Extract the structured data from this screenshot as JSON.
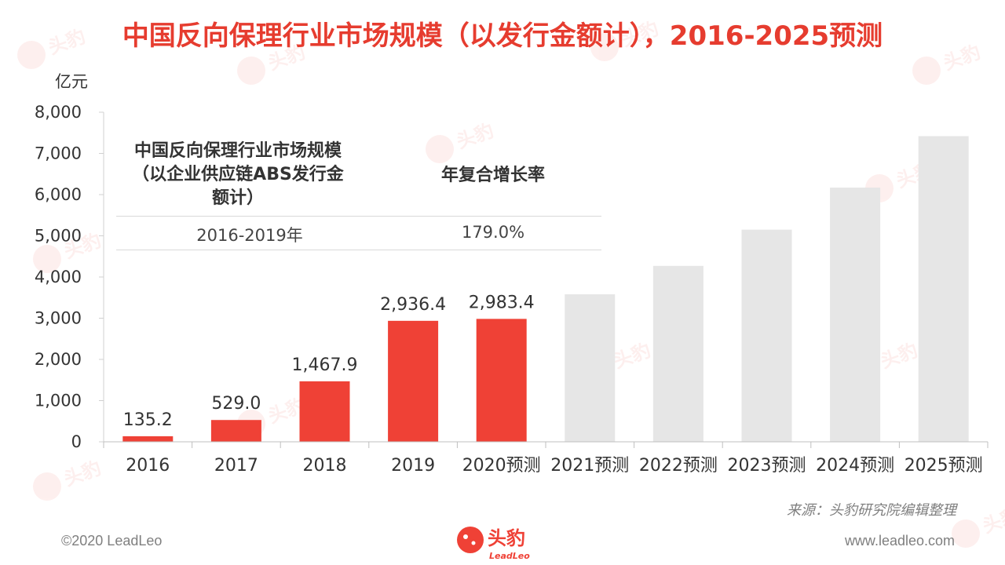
{
  "title": "中国反向保理行业市场规模（以发行金额计），2016-2025预测",
  "colors": {
    "title": "#e63c2f",
    "actual_bar": "#ef4136",
    "forecast_bar": "#e6e6e6",
    "text": "#333333"
  },
  "chart_data": {
    "type": "bar",
    "title": "",
    "ylabel": "亿元",
    "xlabel": "",
    "ylim": [
      0,
      8000
    ],
    "yticks": [
      0,
      1000,
      2000,
      3000,
      4000,
      5000,
      6000,
      7000,
      8000
    ],
    "ytick_labels": [
      "0",
      "1,000",
      "2,000",
      "3,000",
      "4,000",
      "5,000",
      "6,000",
      "7,000",
      "8,000"
    ],
    "grid": false,
    "categories": [
      "2016",
      "2017",
      "2018",
      "2019",
      "2020预测",
      "2021预测",
      "2022预测",
      "2023预测",
      "2024预测",
      "2025预测"
    ],
    "values": [
      135.2,
      529.0,
      1467.9,
      2936.4,
      2983.4,
      3580,
      4270,
      5150,
      6170,
      7420
    ],
    "data_labels": [
      "135.2",
      "529.0",
      "1,467.9",
      "2,936.4",
      "2,983.4",
      "",
      "",
      "",
      "",
      ""
    ],
    "bar_kind": [
      "actual",
      "actual",
      "actual",
      "actual",
      "actual",
      "forecast",
      "forecast",
      "forecast",
      "forecast",
      "forecast"
    ]
  },
  "cagr_table": {
    "header_left": "中国反向保理行业市场规模（以企业供应链ABS发行金额计）",
    "header_left_lines": [
      "中国反向保理行业市场规模",
      "（以企业供应链ABS发行金",
      "额计）"
    ],
    "header_right": "年复合增长率",
    "row": {
      "period": "2016-2019年",
      "rate": "179.0%"
    }
  },
  "source": "来源：头豹研究院编辑整理",
  "footer": {
    "copyright": "©2020 LeadLeo",
    "url": "www.leadleo.com",
    "logo_cn": "头豹",
    "logo_en": "LeadLeo"
  }
}
